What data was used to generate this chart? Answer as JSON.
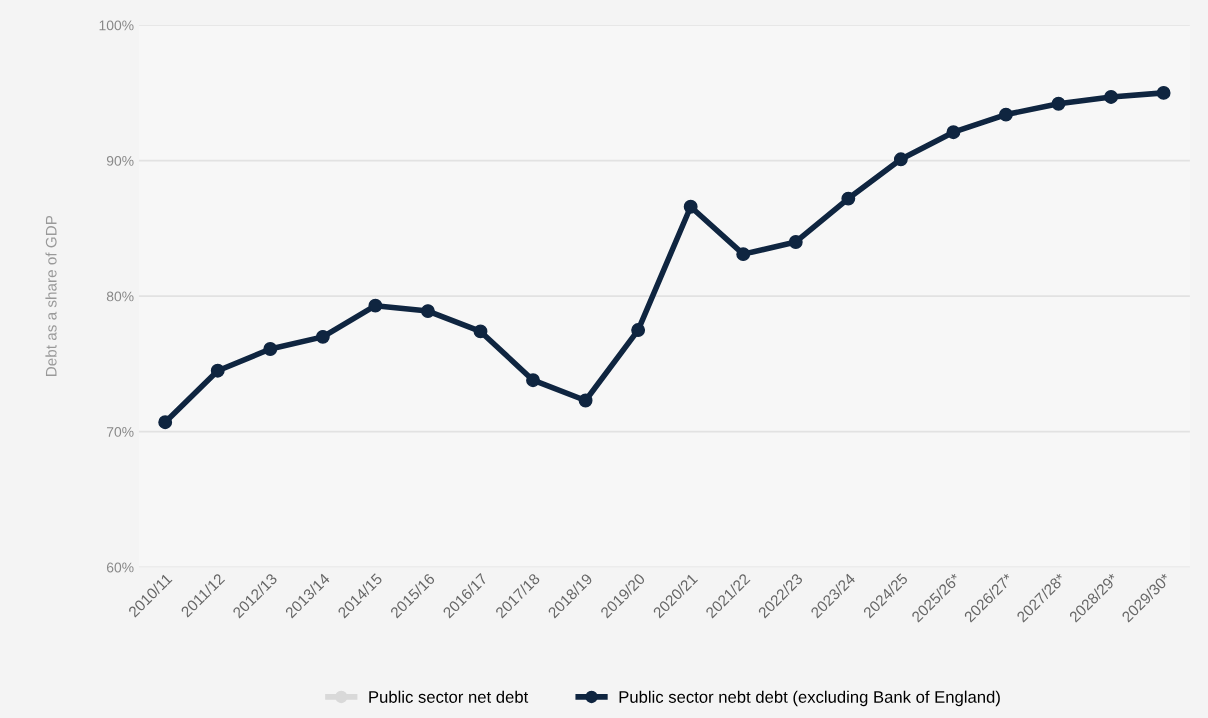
{
  "chart_data": {
    "type": "line",
    "ylabel": "Debt as a share of GDP",
    "categories": [
      "2010/11",
      "2011/12",
      "2012/13",
      "2013/14",
      "2014/15",
      "2015/16",
      "2016/17",
      "2017/18",
      "2018/19",
      "2019/20",
      "2020/21",
      "2021/22",
      "2022/23",
      "2023/24",
      "2024/25",
      "2025/26*",
      "2026/27*",
      "2027/28*",
      "2028/29*",
      "2029/30*"
    ],
    "series": [
      {
        "name": "Public sector net debt",
        "color": "#d9d9d9",
        "values": [
          null,
          null,
          null,
          null,
          null,
          null,
          null,
          null,
          null,
          null,
          null,
          null,
          null,
          null,
          null,
          null,
          null,
          null,
          null,
          null
        ]
      },
      {
        "name": "Public sector nebt debt (excluding Bank of England)",
        "color": "#0f2540",
        "values": [
          70.7,
          74.5,
          76.1,
          77.0,
          79.3,
          78.9,
          77.4,
          73.8,
          72.3,
          77.5,
          86.6,
          83.1,
          84.0,
          87.2,
          90.1,
          92.1,
          93.4,
          94.2,
          94.7,
          95.0
        ]
      }
    ],
    "ylim": [
      60,
      100
    ],
    "yticks": [
      {
        "value": 60,
        "label": "60%"
      },
      {
        "value": 70,
        "label": "70%"
      },
      {
        "value": 80,
        "label": "80%"
      },
      {
        "value": 90,
        "label": "90%"
      },
      {
        "value": 100,
        "label": "100%"
      }
    ],
    "grid": "y",
    "legend": "bottom",
    "marker": "circle",
    "line_style": "solid"
  }
}
